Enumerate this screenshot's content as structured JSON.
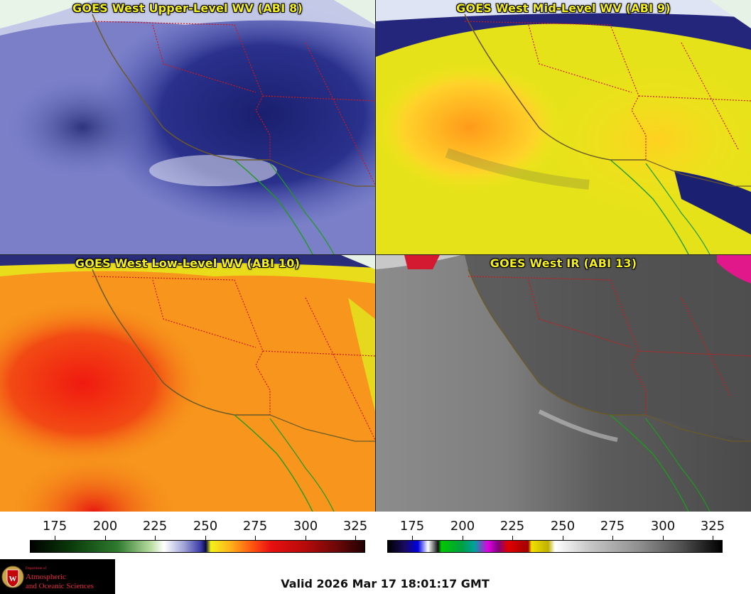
{
  "panels": [
    {
      "title": "GOES West Upper-Level WV (ABI 8)",
      "colormap": "upper-wv-blue-white"
    },
    {
      "title": "GOES West Mid-Level WV (ABI 9)",
      "colormap": "mid-wv-yellow"
    },
    {
      "title": "GOES West Low-Level WV (ABI 10)",
      "colormap": "low-wv-orange-red"
    },
    {
      "title": "GOES West IR (ABI 13)",
      "colormap": "ir-grayscale"
    }
  ],
  "colorbars": [
    {
      "ticks": [
        "175",
        "200",
        "225",
        "250",
        "275",
        "300",
        "325"
      ]
    },
    {
      "ticks": [
        "175",
        "200",
        "225",
        "250",
        "275",
        "300",
        "325"
      ]
    }
  ],
  "logo": {
    "line0": "Department of",
    "line1": "Atmospheric",
    "line2": "and Oceanic Sciences"
  },
  "valid_time": "Valid 2026 Mar 17 18:01:17 GMT",
  "colors": {
    "title_text": "#f2ee20",
    "border_red": "#d01818",
    "coast_green": "#1e9a1e",
    "coast_brown": "#6b5a28",
    "logo_red": "#e8283c"
  }
}
